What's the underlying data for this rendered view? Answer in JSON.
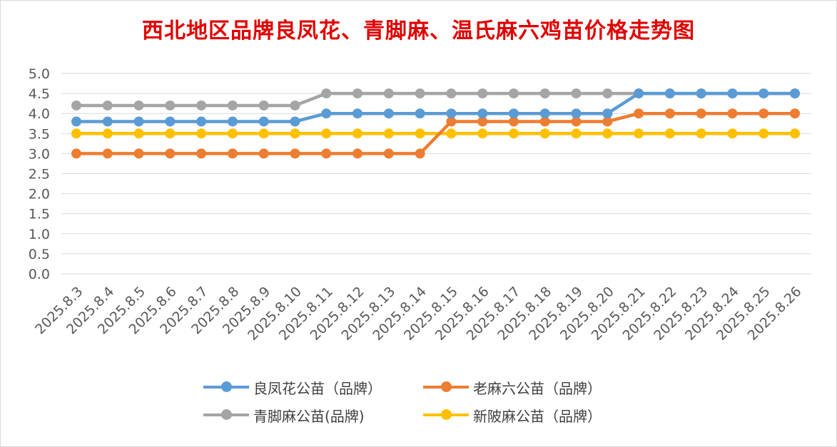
{
  "title": "西北地区品牌良凤花、青脚麻、温氏麻六鸡苗价格走势图",
  "chart_data": {
    "type": "line",
    "title": "西北地区品牌良凤花、青脚麻、温氏麻六鸡苗价格走势图",
    "xlabel": "",
    "ylabel": "",
    "ylim": [
      0,
      5
    ],
    "yticks": [
      "0.0",
      "0.5",
      "1.0",
      "1.5",
      "2.0",
      "2.5",
      "3.0",
      "3.5",
      "4.0",
      "4.5",
      "5.0"
    ],
    "grid": true,
    "legend_position": "bottom",
    "categories": [
      "2025.8.3",
      "2025.8.4",
      "2025.8.5",
      "2025.8.6",
      "2025.8.7",
      "2025.8.8",
      "2025.8.9",
      "2025.8.10",
      "2025.8.11",
      "2025.8.12",
      "2025.8.13",
      "2025.8.14",
      "2025.8.15",
      "2025.8.16",
      "2025.8.17",
      "2025.8.18",
      "2025.8.19",
      "2025.8.20",
      "2025.8.21",
      "2025.8.22",
      "2025.8.23",
      "2025.8.24",
      "2025.8.25",
      "2025.8.26"
    ],
    "series": [
      {
        "name": "良凤花公苗（品牌）",
        "color": "#5b9bd5",
        "values": [
          3.8,
          3.8,
          3.8,
          3.8,
          3.8,
          3.8,
          3.8,
          3.8,
          4.0,
          4.0,
          4.0,
          4.0,
          4.0,
          4.0,
          4.0,
          4.0,
          4.0,
          4.0,
          4.5,
          4.5,
          4.5,
          4.5,
          4.5,
          4.5
        ]
      },
      {
        "name": "老麻六公苗（品牌）",
        "color": "#ed7d31",
        "values": [
          3.0,
          3.0,
          3.0,
          3.0,
          3.0,
          3.0,
          3.0,
          3.0,
          3.0,
          3.0,
          3.0,
          3.0,
          3.8,
          3.8,
          3.8,
          3.8,
          3.8,
          3.8,
          4.0,
          4.0,
          4.0,
          4.0,
          4.0,
          4.0
        ]
      },
      {
        "name": "青脚麻公苗(品牌)",
        "color": "#a5a5a5",
        "values": [
          4.2,
          4.2,
          4.2,
          4.2,
          4.2,
          4.2,
          4.2,
          4.2,
          4.5,
          4.5,
          4.5,
          4.5,
          4.5,
          4.5,
          4.5,
          4.5,
          4.5,
          4.5,
          4.5,
          4.5,
          4.5,
          4.5,
          4.5,
          4.5
        ]
      },
      {
        "name": "新陂麻公苗（品牌）",
        "color": "#ffc000",
        "values": [
          3.5,
          3.5,
          3.5,
          3.5,
          3.5,
          3.5,
          3.5,
          3.5,
          3.5,
          3.5,
          3.5,
          3.5,
          3.5,
          3.5,
          3.5,
          3.5,
          3.5,
          3.5,
          3.5,
          3.5,
          3.5,
          3.5,
          3.5,
          3.5
        ]
      }
    ]
  }
}
